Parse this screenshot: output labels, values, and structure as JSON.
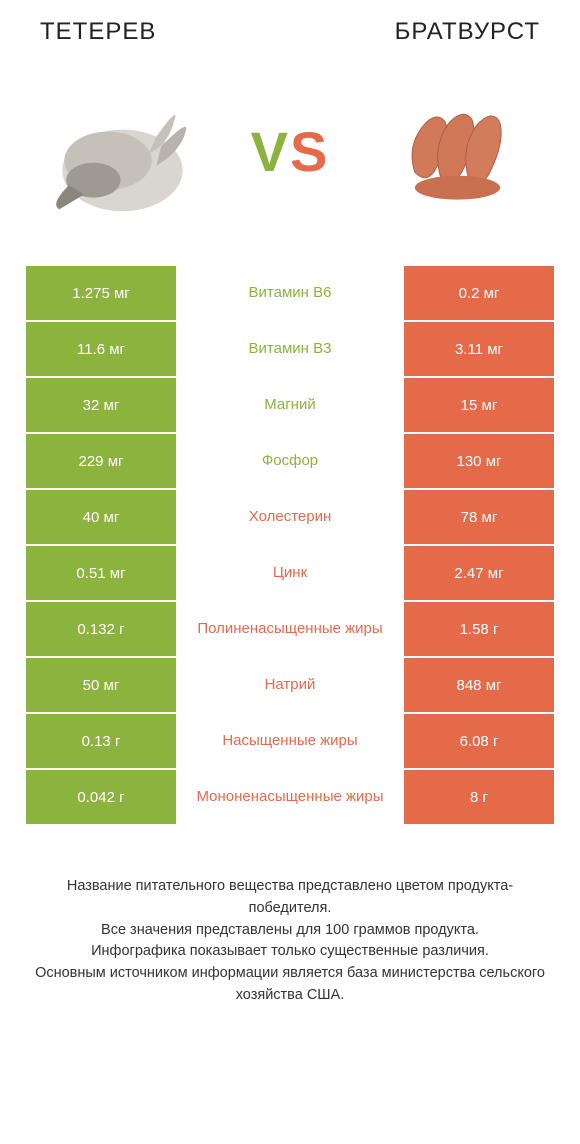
{
  "left_title": "ТЕТЕРЕВ",
  "right_title": "БРАТВУРСТ",
  "vs_text": "VS",
  "colors": {
    "green": "#8bb33d",
    "orange": "#e46a4a",
    "vs_v": "#8bb33d",
    "vs_s": "#e46a4a",
    "background": "#ffffff"
  },
  "rows": [
    {
      "left": "1.275 мг",
      "mid": "Витамин B6",
      "right": "0.2 мг",
      "winner": "left"
    },
    {
      "left": "11.6 мг",
      "mid": "Витамин B3",
      "right": "3.11 мг",
      "winner": "left"
    },
    {
      "left": "32 мг",
      "mid": "Магний",
      "right": "15 мг",
      "winner": "left"
    },
    {
      "left": "229 мг",
      "mid": "Фосфор",
      "right": "130 мг",
      "winner": "left"
    },
    {
      "left": "40 мг",
      "mid": "Холестерин",
      "right": "78 мг",
      "winner": "right"
    },
    {
      "left": "0.51 мг",
      "mid": "Цинк",
      "right": "2.47 мг",
      "winner": "right"
    },
    {
      "left": "0.132 г",
      "mid": "Полиненасыщенные жиры",
      "right": "1.58 г",
      "winner": "right"
    },
    {
      "left": "50 мг",
      "mid": "Натрий",
      "right": "848 мг",
      "winner": "right"
    },
    {
      "left": "0.13 г",
      "mid": "Насыщенные жиры",
      "right": "6.08 г",
      "winner": "right"
    },
    {
      "left": "0.042 г",
      "mid": "Мононенасыщенные жиры",
      "right": "8 г",
      "winner": "right"
    }
  ],
  "footer_lines": [
    "Название питательного вещества представлено цветом продукта-победителя.",
    "Все значения представлены для 100 граммов продукта.",
    "Инфографика показывает только существенные различия.",
    "Основным источником информации является база министерства сельского хозяйства США."
  ]
}
